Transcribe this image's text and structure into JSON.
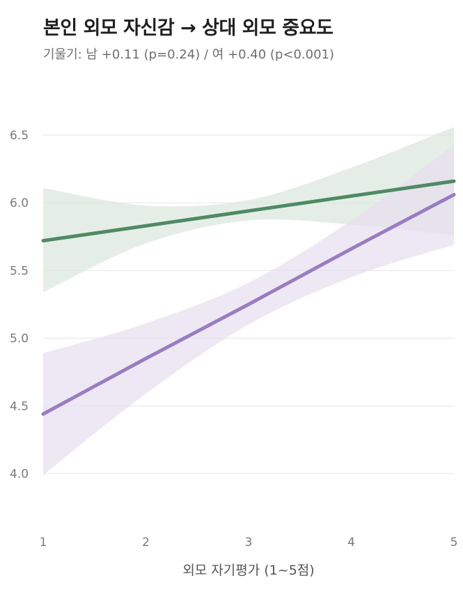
{
  "header": {
    "title": "본인 외모 자신감 → 상대 외모 중요도",
    "subtitle": "기울기: 남 +0.11 (p=0.24) / 여 +0.40 (p<0.001)"
  },
  "chart_data": {
    "type": "line",
    "title": "본인 외모 자신감 → 상대 외모 중요도",
    "subtitle": "기울기: 남 +0.11 (p=0.24) / 여 +0.40 (p<0.001)",
    "xlabel": "외모 자기평가 (1~5점)",
    "ylabel": "",
    "xlim": [
      1,
      5
    ],
    "ylim": [
      4.0,
      6.5
    ],
    "x_ticks": [
      "1",
      "2",
      "3",
      "4",
      "5"
    ],
    "y_ticks": [
      "4.0",
      "4.5",
      "5.0",
      "5.5",
      "6.0",
      "6.5"
    ],
    "grid": "horizontal",
    "legend": "none",
    "x": [
      1,
      2,
      3,
      4,
      5
    ],
    "series": [
      {
        "color": "#4f8a65",
        "band_color": "#dbe7dd",
        "values": [
          5.72,
          5.83,
          5.94,
          6.05,
          6.16
        ],
        "ci_lower": [
          5.34,
          5.7,
          5.87,
          5.84,
          5.76
        ],
        "ci_upper": [
          6.11,
          5.98,
          6.02,
          6.26,
          6.56
        ]
      },
      {
        "color": "#9a7cc0",
        "band_color": "#e6dff0",
        "values": [
          4.44,
          4.85,
          5.25,
          5.66,
          6.06
        ],
        "ci_lower": [
          3.99,
          4.59,
          5.1,
          5.45,
          5.69
        ],
        "ci_upper": [
          4.89,
          5.11,
          5.41,
          5.87,
          6.43
        ]
      }
    ]
  }
}
